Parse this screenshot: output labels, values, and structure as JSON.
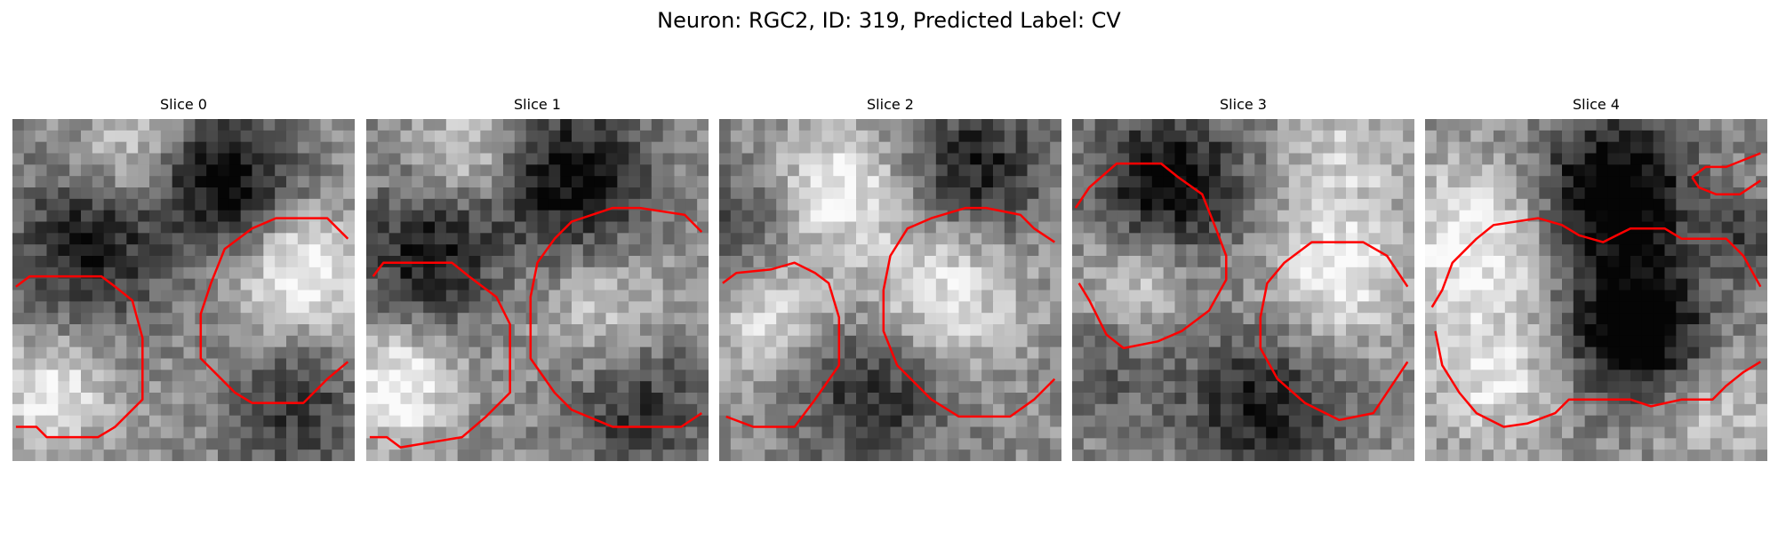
{
  "figure": {
    "title": "Neuron: RGC2, ID: 319, Predicted Label: CV"
  },
  "slices": [
    {
      "label": "Slice 0"
    },
    {
      "label": "Slice 1"
    },
    {
      "label": "Slice 2"
    },
    {
      "label": "Slice 3"
    },
    {
      "label": "Slice 4"
    }
  ],
  "colors": {
    "contour": "#ff0000",
    "colormap": "gray"
  }
}
